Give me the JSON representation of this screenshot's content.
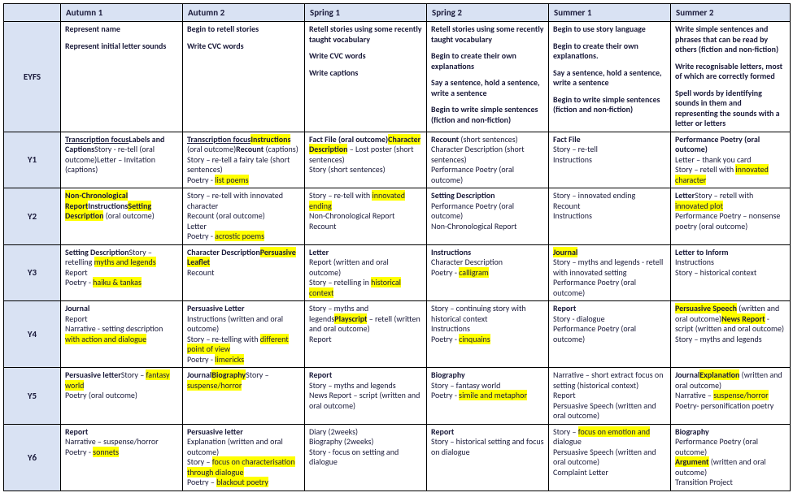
{
  "columns": [
    "Autumn 1",
    "Autumn 2",
    "Spring 1",
    "Spring 2",
    "Summer 1",
    "Summer 2"
  ],
  "rows": [
    {
      "year": "EYFS",
      "cells": [
        [
          [
            "",
            "Represent name",
            "b"
          ],
          [
            "",
            "",
            "gap"
          ],
          [
            "",
            "Represent initial letter sounds",
            "b"
          ]
        ],
        [
          [
            "",
            "Begin to retell stories",
            "b"
          ],
          [
            "",
            "",
            "gap"
          ],
          [
            "",
            "Write CVC words",
            "b"
          ]
        ],
        [
          [
            "",
            "Retell stories using some recently taught vocabulary",
            "b"
          ],
          [
            "",
            "",
            "gap"
          ],
          [
            "",
            "Write CVC words",
            "b"
          ],
          [
            "",
            "",
            "gap"
          ],
          [
            "",
            "Write captions",
            "b"
          ]
        ],
        [
          [
            "",
            "Retell stories using some recently taught vocabulary",
            "b"
          ],
          [
            "",
            "",
            "gap"
          ],
          [
            "",
            "Begin to create their own explanations",
            "b"
          ],
          [
            "",
            "",
            "gap"
          ],
          [
            "",
            "Say a sentence, hold a sentence, write a sentence",
            "b"
          ],
          [
            "",
            "",
            "gap"
          ],
          [
            "",
            "Begin to write simple sentences (fiction and non-fiction)",
            "b"
          ]
        ],
        [
          [
            "",
            "Begin to use story language",
            "b"
          ],
          [
            "",
            "",
            "gap"
          ],
          [
            "",
            "Begin to create their own explanations.",
            "b"
          ],
          [
            "",
            "",
            "gap"
          ],
          [
            "",
            "Say a sentence, hold a sentence, write a sentence",
            "b"
          ],
          [
            "",
            "",
            "gap"
          ],
          [
            "",
            "Begin to write simple sentences (fiction and non-fiction)",
            "b"
          ]
        ],
        [
          [
            "",
            "Write simple sentences and phrases that can be read by others (fiction and non-fiction)",
            "b"
          ],
          [
            "",
            "",
            "gap"
          ],
          [
            "",
            "Write recognisable letters, most of which are correctly formed",
            "b"
          ],
          [
            "",
            "",
            "gap"
          ],
          [
            "",
            "Spell words by identifying sounds in them and representing the sounds with a letter or letters",
            "b"
          ]
        ]
      ]
    },
    {
      "year": "Y1",
      "cells": [
        [
          [
            "",
            "Transcription focus",
            "b u"
          ],
          [
            "",
            "Labels and Captions",
            "b"
          ],
          [
            "",
            "Story ",
            ""
          ],
          [
            "",
            "- re-tell (oral outcome)",
            ""
          ],
          [
            "",
            "Letter ",
            ""
          ],
          [
            "",
            "– Invitation (captions)",
            ""
          ]
        ],
        [
          [
            "",
            "Transcription focus",
            "b u"
          ],
          [
            "hl",
            "Instructions",
            "b"
          ],
          [
            "",
            " (oral outcome)",
            ""
          ],
          [
            "",
            "Recount ",
            "b"
          ],
          [
            "",
            "(captions)",
            ""
          ],
          [
            "",
            "Story – re-tell a fairy tale (short sentences)",
            "block"
          ],
          [
            "",
            "Poetry - ",
            ""
          ],
          [
            "hl",
            "list poems",
            ""
          ]
        ],
        [
          [
            "",
            "Fact File (oral outcome)",
            "b"
          ],
          [
            "hl",
            "Character Description",
            "b"
          ],
          [
            "",
            " – Lost poster (short sentences)",
            ""
          ],
          [
            "",
            "Story (short sentences)",
            "block"
          ]
        ],
        [
          [
            "",
            "Recount ",
            "b"
          ],
          [
            "",
            "(short sentences)",
            ""
          ],
          [
            "",
            "Character Description (short sentences)",
            "block"
          ],
          [
            "",
            "Performance Poetry (oral outcome)",
            "block"
          ]
        ],
        [
          [
            "",
            "Fact File",
            "b"
          ],
          [
            "",
            "Story – re-tell",
            "block"
          ],
          [
            "",
            "Instructions",
            "block"
          ]
        ],
        [
          [
            "",
            "Performance Poetry (oral outcome)",
            "b"
          ],
          [
            "",
            "Letter – thank you card",
            "block"
          ],
          [
            "",
            "Story – retell with ",
            ""
          ],
          [
            "hl",
            "innovated character",
            ""
          ]
        ]
      ]
    },
    {
      "year": "Y2",
      "cells": [
        [
          [
            "hl",
            "Non-Chronological Report",
            "b"
          ],
          [
            "",
            "Instructions",
            "b block"
          ],
          [
            "hl",
            "Setting Description",
            "b"
          ],
          [
            "",
            " (oral outcome)",
            ""
          ]
        ],
        [
          [
            "",
            "Story – re-tell with innovated character",
            ""
          ],
          [
            "",
            "Recount (oral outcome)",
            "block"
          ],
          [
            "",
            "Letter",
            "block"
          ],
          [
            "",
            "Poetry - ",
            ""
          ],
          [
            "hl",
            "acrostic poems",
            ""
          ]
        ],
        [
          [
            "",
            "Story – re-tell with ",
            ""
          ],
          [
            "hl",
            "innovated ending",
            ""
          ],
          [
            "",
            "Non-Chronological Report",
            "block"
          ],
          [
            "",
            "Recount",
            "block"
          ]
        ],
        [
          [
            "",
            "Setting Description",
            "b"
          ],
          [
            "",
            "Performance Poetry (oral outcome)",
            "block"
          ],
          [
            "",
            "Non-Chronological Report",
            "block"
          ]
        ],
        [
          [
            "",
            "Story – innovated ending",
            ""
          ],
          [
            "",
            "Recount",
            "block"
          ],
          [
            "",
            "Instructions",
            "block"
          ]
        ],
        [
          [
            "",
            "Letter",
            "b"
          ],
          [
            "",
            "Story – retell with ",
            ""
          ],
          [
            "hl",
            "innovated plot",
            ""
          ],
          [
            "",
            "Performance Poetry – nonsense poetry (oral outcome)",
            "block"
          ]
        ]
      ]
    },
    {
      "year": "Y3",
      "cells": [
        [
          [
            "",
            "Setting Description",
            "b"
          ],
          [
            "",
            "Story – retelling ",
            ""
          ],
          [
            "hl",
            "myths and legends",
            ""
          ],
          [
            "",
            "Report",
            "block"
          ],
          [
            "",
            "Poetry - ",
            ""
          ],
          [
            "hl",
            "haiku & tankas",
            ""
          ]
        ],
        [
          [
            "",
            "Character Description",
            "b"
          ],
          [
            "hl",
            "Persuasive Leaflet",
            "b block"
          ],
          [
            "",
            "Recount",
            "block"
          ]
        ],
        [
          [
            "",
            "Letter",
            "b"
          ],
          [
            "",
            "Report (written and oral outcome)",
            "block"
          ],
          [
            "",
            "Story – retelling in ",
            ""
          ],
          [
            "hl",
            "historical context",
            ""
          ]
        ],
        [
          [
            "",
            "Instructions",
            "b"
          ],
          [
            "",
            "Character Description",
            "block"
          ],
          [
            "",
            "Poetry - ",
            ""
          ],
          [
            "hl",
            "calligram",
            ""
          ]
        ],
        [
          [
            "hl",
            "Journal",
            "b"
          ],
          [
            "",
            "Story – myths and legends - retell with innovated setting",
            "block"
          ],
          [
            "",
            "Performance Poetry (oral outcome)",
            "block"
          ]
        ],
        [
          [
            "",
            "Letter to Inform",
            "b"
          ],
          [
            "",
            "Instructions",
            "block"
          ],
          [
            "",
            "Story – historical context",
            "block"
          ]
        ]
      ]
    },
    {
      "year": "Y4",
      "cells": [
        [
          [
            "",
            "Journal",
            "b"
          ],
          [
            "",
            "Report",
            "block"
          ],
          [
            "",
            "Narrative - setting description ",
            ""
          ],
          [
            "hl",
            "with action and dialogue",
            ""
          ]
        ],
        [
          [
            "",
            "Persuasive Letter",
            "b"
          ],
          [
            "",
            "Instructions (written and oral outcome)",
            "block"
          ],
          [
            "",
            "Story – re-telling with ",
            ""
          ],
          [
            "hl",
            "different point of view",
            ""
          ],
          [
            "",
            "Poetry - ",
            "block-start"
          ],
          [
            "hl",
            "limericks",
            ""
          ]
        ],
        [
          [
            "",
            "Story – myths and legends",
            ""
          ],
          [
            "hl",
            "Playscript",
            "b"
          ],
          [
            "",
            " – retell (written and oral outcome)",
            ""
          ],
          [
            "",
            "Report",
            "block"
          ]
        ],
        [
          [
            "",
            "Story – continuing story with historical context",
            ""
          ],
          [
            "",
            "Instructions",
            "block"
          ],
          [
            "",
            "Poetry - ",
            ""
          ],
          [
            "hl",
            "cinquains",
            ""
          ]
        ],
        [
          [
            "",
            "Report",
            "b"
          ],
          [
            "",
            "Story - dialogue",
            "block"
          ],
          [
            "",
            "Performance Poetry (oral outcome)",
            "block"
          ]
        ],
        [
          [
            "hl",
            "Persuasive Speech",
            "b"
          ],
          [
            "",
            " (written and oral outcome)",
            ""
          ],
          [
            "hl",
            "News Report",
            "b block-start"
          ],
          [
            "",
            " - script (written and oral outcome)",
            ""
          ],
          [
            "",
            "Story – myths and legends",
            "block"
          ]
        ]
      ]
    },
    {
      "year": "Y5",
      "cells": [
        [
          [
            "",
            "Persuasive letter",
            "b"
          ],
          [
            "",
            "Story – ",
            ""
          ],
          [
            "hl",
            "fantasy world",
            ""
          ],
          [
            "",
            "Poetry (oral outcome)",
            "block"
          ]
        ],
        [
          [
            "",
            "Journal",
            "b"
          ],
          [
            "hl",
            "Biography",
            "b block"
          ],
          [
            "",
            "Story – ",
            ""
          ],
          [
            "hl",
            "suspense/horror",
            ""
          ]
        ],
        [
          [
            "",
            "Report",
            "b"
          ],
          [
            "",
            "Story – myths and legends",
            "block"
          ],
          [
            "",
            "News Report – script (written and oral outcome)",
            "block"
          ]
        ],
        [
          [
            "",
            "Biography",
            "b"
          ],
          [
            "",
            "Story – fantasy world",
            "block"
          ],
          [
            "",
            "Poetry - ",
            ""
          ],
          [
            "hl",
            "simile and metaphor",
            ""
          ]
        ],
        [
          [
            "",
            "Narrative – short extract focus on setting (historical context)",
            ""
          ],
          [
            "",
            "Report",
            "block"
          ],
          [
            "",
            "Persuasive Speech (written and oral outcome)",
            "block"
          ]
        ],
        [
          [
            "",
            "Journal",
            "b"
          ],
          [
            "hl",
            "Explanation",
            "b"
          ],
          [
            "",
            " (written and oral outcome)",
            ""
          ],
          [
            "",
            "Narrative – ",
            "block-start"
          ],
          [
            "hl",
            "suspense/horror",
            ""
          ],
          [
            "",
            "Poetry- personification poetry",
            "block"
          ]
        ]
      ]
    },
    {
      "year": "Y6",
      "cells": [
        [
          [
            "",
            "Report",
            "b"
          ],
          [
            "",
            "Narrative – suspense/horror",
            "block"
          ],
          [
            "",
            "Poetry - ",
            ""
          ],
          [
            "hl",
            "sonnets",
            ""
          ]
        ],
        [
          [
            "",
            "Persuasive letter",
            "b"
          ],
          [
            "",
            "Explanation (written and oral outcome)",
            "block"
          ],
          [
            "",
            "Story – ",
            ""
          ],
          [
            "hl",
            "focus on characterisation through dialogue",
            ""
          ],
          [
            "",
            "Poetry – ",
            "block-start"
          ],
          [
            "hl",
            "blackout poetry",
            ""
          ]
        ],
        [
          [
            "",
            "Diary (2weeks)",
            ""
          ],
          [
            "",
            "Biography (2weeks)",
            "block"
          ],
          [
            "",
            "Story - focus on setting and dialogue",
            "block"
          ]
        ],
        [
          [
            "",
            "Report",
            "b"
          ],
          [
            "",
            "Story – historical setting and focus on dialogue",
            "block"
          ]
        ],
        [
          [
            "",
            "Story – ",
            ""
          ],
          [
            "hl",
            "focus on emotion and",
            ""
          ],
          [
            "",
            " dialogue",
            ""
          ],
          [
            "",
            "Persuasive Speech (written and oral outcome)",
            "block"
          ],
          [
            "",
            "Complaint Letter",
            "block"
          ]
        ],
        [
          [
            "",
            "Biography",
            "b"
          ],
          [
            "",
            "Performance Poetry (oral outcome)",
            "block"
          ],
          [
            "hl",
            "Argument",
            "b"
          ],
          [
            "",
            " (written and oral outcome)",
            ""
          ],
          [
            "",
            "Transition Project",
            "block"
          ]
        ]
      ]
    }
  ]
}
